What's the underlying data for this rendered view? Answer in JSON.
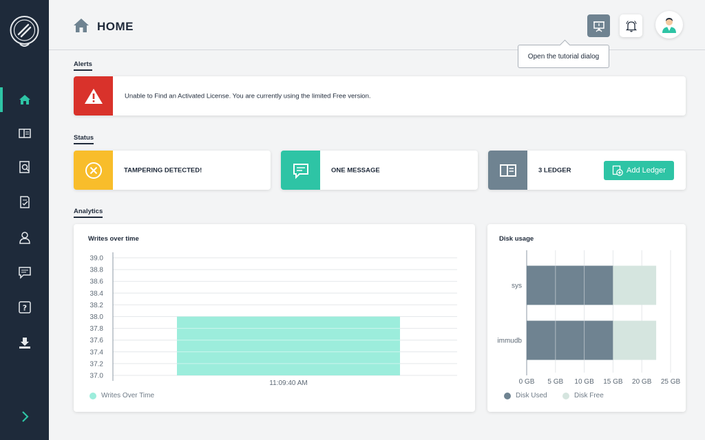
{
  "header": {
    "title": "HOME",
    "tutorial_tooltip": "Open the tutorial dialog"
  },
  "sidebar": {
    "items": [
      {
        "icon": "home-icon",
        "active": true
      },
      {
        "icon": "ledger-icon",
        "active": false
      },
      {
        "icon": "search-document-icon",
        "active": false
      },
      {
        "icon": "checklist-icon",
        "active": false
      },
      {
        "icon": "user-icon",
        "active": false
      },
      {
        "icon": "message-icon",
        "active": false
      },
      {
        "icon": "help-icon",
        "active": false
      },
      {
        "icon": "download-icon",
        "active": false
      }
    ],
    "expand_icon": "chevron-right-icon"
  },
  "sections": {
    "alerts": "Alerts",
    "status": "Status",
    "analytics": "Analytics"
  },
  "alert": {
    "text": "Unable to Find an Activated License. You are currently using the limited Free version.",
    "color": "#d9322b"
  },
  "status": {
    "tampering": {
      "label": "TAMPERING DETECTED!",
      "color": "#f8bd2b"
    },
    "messages": {
      "label": "ONE MESSAGE",
      "color": "#2ec4a5"
    },
    "ledger": {
      "label": "3 LEDGER",
      "color": "#6f8391",
      "button": "Add Ledger"
    }
  },
  "colors": {
    "accent": "#2ec4a5",
    "sidebar": "#1e2a3a"
  },
  "chart_data": [
    {
      "type": "bar",
      "title": "Writes over time",
      "categories": [
        "11:09:40 AM"
      ],
      "series": [
        {
          "name": "Writes Over Time",
          "values": [
            38.0
          ],
          "color": "#9ceddc"
        }
      ],
      "ylim": [
        37.0,
        39.0
      ],
      "yticks": [
        "37.0",
        "37.2",
        "37.4",
        "37.6",
        "37.8",
        "38.0",
        "38.2",
        "38.4",
        "38.6",
        "38.8",
        "39.0"
      ],
      "grid": true,
      "legend": "bottom-left"
    },
    {
      "type": "bar",
      "orientation": "horizontal",
      "stacked": true,
      "title": "Disk usage",
      "categories": [
        "sys",
        "immudb"
      ],
      "series": [
        {
          "name": "Disk Used",
          "values": [
            15,
            15
          ],
          "color": "#6f8391"
        },
        {
          "name": "Disk Free",
          "values": [
            7.5,
            7.5
          ],
          "color": "#d5e5df"
        }
      ],
      "xlim": [
        0,
        25
      ],
      "xticks": [
        "0 GB",
        "5 GB",
        "10 GB",
        "15 GB",
        "20 GB",
        "25 GB"
      ],
      "grid": true,
      "legend": "bottom-left"
    }
  ]
}
